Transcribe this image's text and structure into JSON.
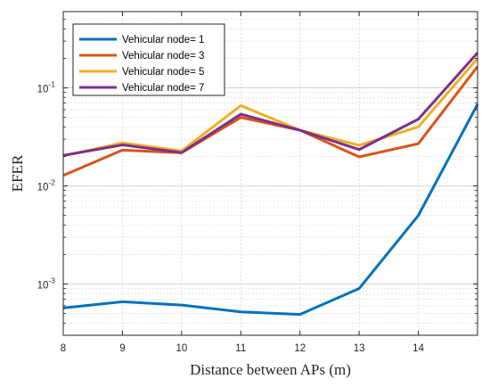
{
  "chart_data": {
    "type": "line",
    "xlabel": "Distance between APs (m)",
    "ylabel": "EFER",
    "x": [
      8,
      9,
      10,
      11,
      12,
      13,
      14,
      15
    ],
    "xlim": [
      8,
      15
    ],
    "xticks": [
      8,
      9,
      10,
      11,
      12,
      13,
      14
    ],
    "yscale": "log",
    "ylim": [
      0.0003,
      0.6
    ],
    "yticks": [
      {
        "value": 0.001,
        "base": "10",
        "exp": "-3"
      },
      {
        "value": 0.01,
        "base": "10",
        "exp": "-2"
      },
      {
        "value": 0.1,
        "base": "10",
        "exp": "-1"
      }
    ],
    "grid": true,
    "legend_position": "top-left",
    "series": [
      {
        "name": "Vehicular node= 1",
        "color": "#0072bd",
        "values": [
          0.00057,
          0.00066,
          0.00061,
          0.00052,
          0.00049,
          0.0009,
          0.005,
          0.068
        ]
      },
      {
        "name": "Vehicular node= 3",
        "color": "#d95319",
        "values": [
          0.0128,
          0.0232,
          0.0218,
          0.05,
          0.037,
          0.0198,
          0.027,
          0.165
        ]
      },
      {
        "name": "Vehicular node= 5",
        "color": "#edb120",
        "values": [
          0.0202,
          0.0275,
          0.0228,
          0.066,
          0.037,
          0.026,
          0.04,
          0.2
        ]
      },
      {
        "name": "Vehicular node= 7",
        "color": "#7e2f8e",
        "values": [
          0.0205,
          0.0262,
          0.0219,
          0.054,
          0.037,
          0.0235,
          0.048,
          0.228
        ]
      }
    ]
  }
}
